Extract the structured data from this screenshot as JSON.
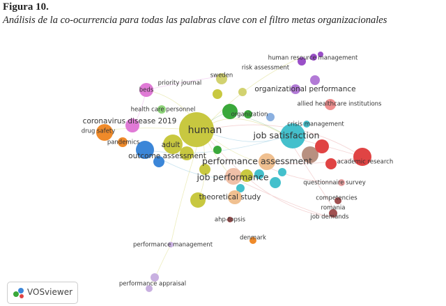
{
  "header": {
    "figure_label": "Figura 10.",
    "caption": "Análisis de la co-ocurrencia para todas las palabras clave con el filtro metas organizacionales"
  },
  "nodes": [
    {
      "label": "human resource management"
    },
    {
      "label": "risk assessment"
    },
    {
      "label": "priority journal"
    },
    {
      "label": "sweden"
    },
    {
      "label": "beds"
    },
    {
      "label": "organizational performance"
    },
    {
      "label": "allied healthcare institutions"
    },
    {
      "label": "health care personnel"
    },
    {
      "label": "organization"
    },
    {
      "label": "crisis management"
    },
    {
      "label": "coronavirus disease 2019"
    },
    {
      "label": "drug safety"
    },
    {
      "label": "human"
    },
    {
      "label": "job satisfaction"
    },
    {
      "label": "pandemics"
    },
    {
      "label": "adult"
    },
    {
      "label": "outcome assessment"
    },
    {
      "label": "performance assessment"
    },
    {
      "label": "academic research"
    },
    {
      "label": "job performance"
    },
    {
      "label": "questionnaire survey"
    },
    {
      "label": "theoretical study"
    },
    {
      "label": "competencies"
    },
    {
      "label": "romania"
    },
    {
      "label": "ahp-topsis"
    },
    {
      "label": "job demands"
    },
    {
      "label": "denmark"
    },
    {
      "label": "performance management"
    },
    {
      "label": "performance appraisal"
    }
  ],
  "logo": {
    "text": "VOSviewer"
  }
}
